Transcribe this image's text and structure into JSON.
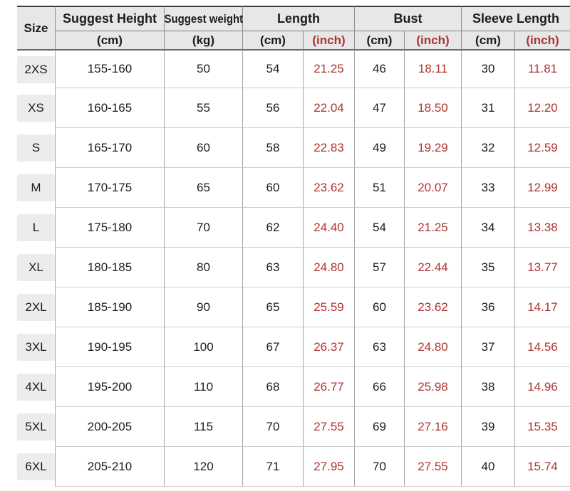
{
  "table": {
    "title": "size-chart",
    "header": {
      "size": "Size",
      "suggest_height": "Suggest Height",
      "suggest_weight": "Suggest weight",
      "length": "Length",
      "bust": "Bust",
      "sleeve_length": "Sleeve Length",
      "unit_cm_height": "(cm)",
      "unit_kg": "(kg)",
      "unit_cm_length": "(cm)",
      "unit_inch_length": "(inch)",
      "unit_cm_bust": "(cm)",
      "unit_inch_bust": "(inch)",
      "unit_cm_sleeve": "(cm)",
      "unit_inch_sleeve": "(inch)"
    },
    "rows": [
      {
        "size": "2XS",
        "height": "155-160",
        "weight": "50",
        "length_cm": "54",
        "length_inch": "21.25",
        "bust_cm": "46",
        "bust_inch": "18.11",
        "sleeve_cm": "30",
        "sleeve_inch": "11.81"
      },
      {
        "size": "XS",
        "height": "160-165",
        "weight": "55",
        "length_cm": "56",
        "length_inch": "22.04",
        "bust_cm": "47",
        "bust_inch": "18.50",
        "sleeve_cm": "31",
        "sleeve_inch": "12.20"
      },
      {
        "size": "S",
        "height": "165-170",
        "weight": "60",
        "length_cm": "58",
        "length_inch": "22.83",
        "bust_cm": "49",
        "bust_inch": "19.29",
        "sleeve_cm": "32",
        "sleeve_inch": "12.59"
      },
      {
        "size": "M",
        "height": "170-175",
        "weight": "65",
        "length_cm": "60",
        "length_inch": "23.62",
        "bust_cm": "51",
        "bust_inch": "20.07",
        "sleeve_cm": "33",
        "sleeve_inch": "12.99"
      },
      {
        "size": "L",
        "height": "175-180",
        "weight": "70",
        "length_cm": "62",
        "length_inch": "24.40",
        "bust_cm": "54",
        "bust_inch": "21.25",
        "sleeve_cm": "34",
        "sleeve_inch": "13.38"
      },
      {
        "size": "XL",
        "height": "180-185",
        "weight": "80",
        "length_cm": "63",
        "length_inch": "24.80",
        "bust_cm": "57",
        "bust_inch": "22.44",
        "sleeve_cm": "35",
        "sleeve_inch": "13.77"
      },
      {
        "size": "2XL",
        "height": "185-190",
        "weight": "90",
        "length_cm": "65",
        "length_inch": "25.59",
        "bust_cm": "60",
        "bust_inch": "23.62",
        "sleeve_cm": "36",
        "sleeve_inch": "14.17"
      },
      {
        "size": "3XL",
        "height": "190-195",
        "weight": "100",
        "length_cm": "67",
        "length_inch": "26.37",
        "bust_cm": "63",
        "bust_inch": "24.80",
        "sleeve_cm": "37",
        "sleeve_inch": "14.56"
      },
      {
        "size": "4XL",
        "height": "195-200",
        "weight": "110",
        "length_cm": "68",
        "length_inch": "26.77",
        "bust_cm": "66",
        "bust_inch": "25.98",
        "sleeve_cm": "38",
        "sleeve_inch": "14.96"
      },
      {
        "size": "5XL",
        "height": "200-205",
        "weight": "115",
        "length_cm": "70",
        "length_inch": "27.55",
        "bust_cm": "69",
        "bust_inch": "27.16",
        "sleeve_cm": "39",
        "sleeve_inch": "15.35"
      },
      {
        "size": "6XL",
        "height": "205-210",
        "weight": "120",
        "length_cm": "71",
        "length_inch": "27.95",
        "bust_cm": "70",
        "bust_inch": "27.55",
        "sleeve_cm": "40",
        "sleeve_inch": "15.74"
      }
    ]
  },
  "colors": {
    "accent_red": "#ad3430",
    "header_bg": "#e7e7e7",
    "size_chip_bg": "#ececec",
    "text": "#1c1c1c"
  }
}
